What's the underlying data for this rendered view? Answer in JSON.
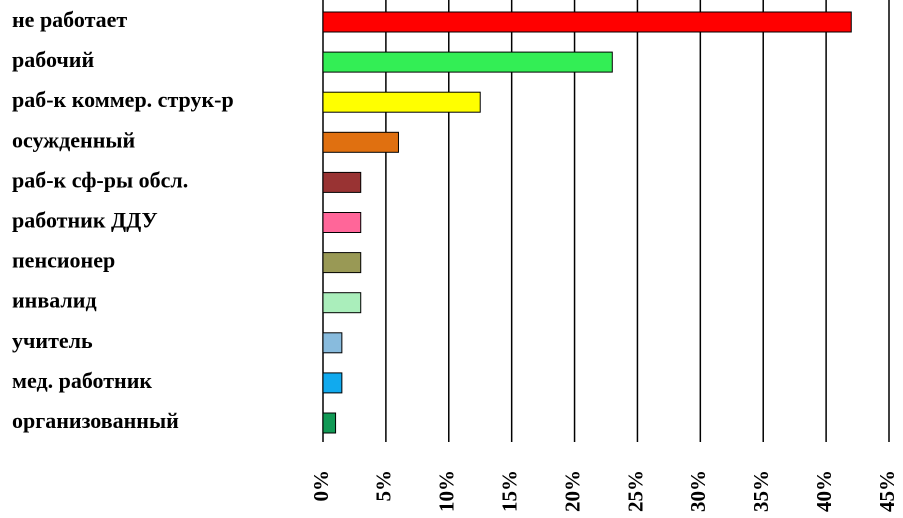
{
  "chart_data": {
    "type": "barh",
    "categories": [
      "не работает",
      "рабочий",
      "раб-к коммер. струк-р",
      "осужденный",
      "раб-к сф-ры обсл.",
      "работник ДДУ",
      "пенсионер",
      "инвалид",
      "учитель",
      "мед. работник",
      "организованный"
    ],
    "values": [
      42,
      23,
      12.5,
      6,
      3,
      3,
      3,
      3,
      1.5,
      1.5,
      1
    ],
    "colors": [
      "#ff0000",
      "#33ee55",
      "#ffff00",
      "#e07010",
      "#993333",
      "#ff6699",
      "#999955",
      "#aaeebb",
      "#88bbdd",
      "#11aaee",
      "#119955"
    ],
    "xlim": [
      0,
      45
    ],
    "xticks": [
      {
        "value": 0,
        "label": "0%"
      },
      {
        "value": 5,
        "label": "5%"
      },
      {
        "value": 10,
        "label": "10%"
      },
      {
        "value": 15,
        "label": "15%"
      },
      {
        "value": 20,
        "label": "20%"
      },
      {
        "value": 25,
        "label": "25%"
      },
      {
        "value": 30,
        "label": "30%"
      },
      {
        "value": 35,
        "label": "35%"
      },
      {
        "value": 40,
        "label": "40%"
      },
      {
        "value": 45,
        "label": "45%"
      }
    ],
    "grid": true
  }
}
